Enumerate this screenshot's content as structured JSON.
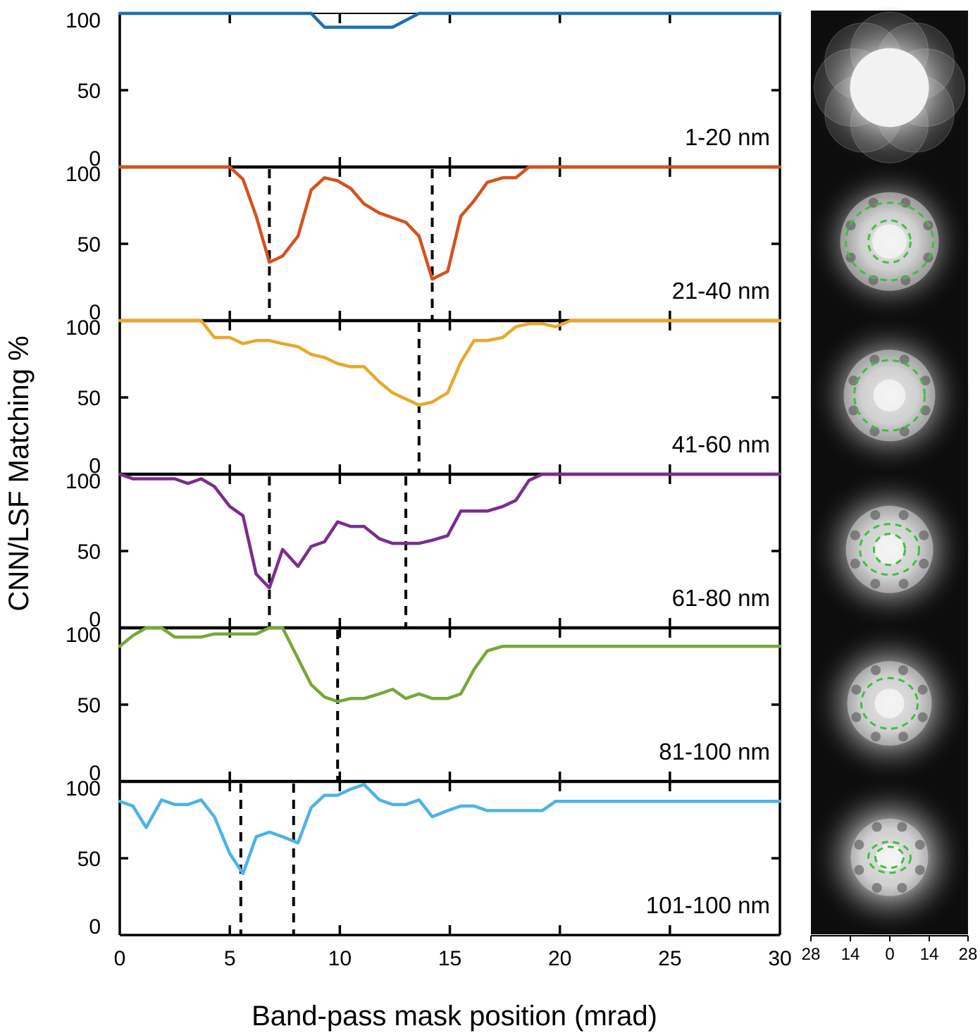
{
  "chart_data": {
    "type": "line",
    "xlabel": "Band-pass mask position (mrad)",
    "ylabel": "CNN/LSF Matching %",
    "xlim": [
      0,
      30
    ],
    "ylim": [
      0,
      100
    ],
    "x_ticks": [
      "0",
      "5",
      "10",
      "15",
      "20",
      "25",
      "30"
    ],
    "y_ticks": [
      "0",
      "50",
      "100"
    ],
    "image_axis_ticks": [
      "28",
      "14",
      "0",
      "14",
      "28"
    ],
    "panels": [
      {
        "range_label": "1-20 nm",
        "color": "#1f6fb2",
        "markers": [],
        "points": [
          [
            0,
            100
          ],
          [
            8.7,
            100
          ],
          [
            9.3,
            91
          ],
          [
            12.4,
            91
          ],
          [
            13.6,
            100
          ],
          [
            30,
            100
          ]
        ]
      },
      {
        "range_label": "21-40 nm",
        "color": "#d4521e",
        "markers": [
          6.8,
          14.2
        ],
        "points": [
          [
            0,
            100
          ],
          [
            5,
            100
          ],
          [
            5.6,
            92
          ],
          [
            6.2,
            68
          ],
          [
            6.8,
            38
          ],
          [
            7.4,
            42
          ],
          [
            8.1,
            55
          ],
          [
            8.7,
            85
          ],
          [
            9.3,
            93
          ],
          [
            9.9,
            91
          ],
          [
            10.5,
            86
          ],
          [
            11.1,
            76
          ],
          [
            11.8,
            70
          ],
          [
            12.4,
            67
          ],
          [
            13,
            64
          ],
          [
            13.6,
            55
          ],
          [
            14.2,
            27
          ],
          [
            14.9,
            32
          ],
          [
            15.5,
            68
          ],
          [
            16.1,
            78
          ],
          [
            16.7,
            90
          ],
          [
            17.4,
            93
          ],
          [
            18,
            93
          ],
          [
            18.6,
            100
          ],
          [
            30,
            100
          ]
        ]
      },
      {
        "range_label": "41-60 nm",
        "color": "#e8a82a",
        "markers": [
          13.6
        ],
        "points": [
          [
            0,
            100
          ],
          [
            3.7,
            100
          ],
          [
            4.3,
            89
          ],
          [
            5,
            89
          ],
          [
            5.6,
            85
          ],
          [
            6.2,
            87
          ],
          [
            6.8,
            87
          ],
          [
            7.4,
            85
          ],
          [
            8.1,
            83
          ],
          [
            8.7,
            78
          ],
          [
            9.3,
            76
          ],
          [
            9.9,
            72
          ],
          [
            10.5,
            70
          ],
          [
            11.1,
            70
          ],
          [
            11.8,
            60
          ],
          [
            12.4,
            53
          ],
          [
            13,
            49
          ],
          [
            13.6,
            45
          ],
          [
            14.2,
            47
          ],
          [
            14.9,
            53
          ],
          [
            15.5,
            73
          ],
          [
            16.1,
            87
          ],
          [
            16.7,
            87
          ],
          [
            17.4,
            89
          ],
          [
            18,
            96
          ],
          [
            18.6,
            98
          ],
          [
            19.2,
            98
          ],
          [
            19.8,
            96
          ],
          [
            20.5,
            100
          ],
          [
            30,
            100
          ]
        ]
      },
      {
        "range_label": "61-80 nm",
        "color": "#7b2d8e",
        "markers": [
          6.8,
          13
        ],
        "points": [
          [
            0,
            100
          ],
          [
            0.6,
            97
          ],
          [
            1.2,
            97
          ],
          [
            1.9,
            97
          ],
          [
            2.5,
            97
          ],
          [
            3.1,
            94
          ],
          [
            3.7,
            97
          ],
          [
            4.3,
            92
          ],
          [
            5,
            79
          ],
          [
            5.6,
            73
          ],
          [
            6.2,
            35
          ],
          [
            6.8,
            26
          ],
          [
            7.4,
            51
          ],
          [
            8.1,
            40
          ],
          [
            8.7,
            53
          ],
          [
            9.3,
            56
          ],
          [
            9.9,
            69
          ],
          [
            10.5,
            66
          ],
          [
            11.1,
            66
          ],
          [
            11.8,
            58
          ],
          [
            12.4,
            55
          ],
          [
            13,
            55
          ],
          [
            13.6,
            55
          ],
          [
            14.2,
            57
          ],
          [
            14.9,
            60
          ],
          [
            15.5,
            76
          ],
          [
            16.1,
            76
          ],
          [
            16.7,
            76
          ],
          [
            17.4,
            79
          ],
          [
            18,
            83
          ],
          [
            18.6,
            96
          ],
          [
            19.2,
            100
          ],
          [
            30,
            100
          ]
        ]
      },
      {
        "range_label": "81-100 nm",
        "color": "#78a73a",
        "markers": [
          9.9
        ],
        "points": [
          [
            0,
            88
          ],
          [
            0.6,
            95
          ],
          [
            1.2,
            100
          ],
          [
            1.9,
            100
          ],
          [
            2.5,
            94
          ],
          [
            3.1,
            94
          ],
          [
            3.7,
            94
          ],
          [
            4.3,
            96
          ],
          [
            5,
            96
          ],
          [
            5.6,
            96
          ],
          [
            6.2,
            96
          ],
          [
            6.8,
            100
          ],
          [
            7.4,
            100
          ],
          [
            8.1,
            80
          ],
          [
            8.7,
            63
          ],
          [
            9.3,
            55
          ],
          [
            9.9,
            52
          ],
          [
            10.5,
            54
          ],
          [
            11.1,
            54
          ],
          [
            11.8,
            57
          ],
          [
            12.4,
            60
          ],
          [
            13,
            54
          ],
          [
            13.6,
            57
          ],
          [
            14.2,
            54
          ],
          [
            14.9,
            54
          ],
          [
            15.5,
            57
          ],
          [
            16.1,
            73
          ],
          [
            16.7,
            85
          ],
          [
            17.4,
            88
          ],
          [
            30,
            88
          ]
        ]
      },
      {
        "range_label": "101-100 nm",
        "color": "#4db3e6",
        "markers": [
          5.5,
          7.9
        ],
        "points": [
          [
            0,
            87
          ],
          [
            0.6,
            84
          ],
          [
            1.2,
            70
          ],
          [
            1.9,
            88
          ],
          [
            2.5,
            85
          ],
          [
            3.1,
            85
          ],
          [
            3.7,
            88
          ],
          [
            4.3,
            77
          ],
          [
            5,
            53
          ],
          [
            5.6,
            40
          ],
          [
            6.2,
            64
          ],
          [
            6.8,
            67
          ],
          [
            7.4,
            64
          ],
          [
            8.1,
            60
          ],
          [
            8.7,
            83
          ],
          [
            9.3,
            91
          ],
          [
            9.9,
            91
          ],
          [
            10.5,
            95
          ],
          [
            11.1,
            98
          ],
          [
            11.8,
            88
          ],
          [
            12.4,
            85
          ],
          [
            13,
            85
          ],
          [
            13.6,
            88
          ],
          [
            14.2,
            77
          ],
          [
            14.9,
            81
          ],
          [
            15.5,
            84
          ],
          [
            16.1,
            84
          ],
          [
            16.7,
            81
          ],
          [
            17.4,
            81
          ],
          [
            18,
            81
          ],
          [
            18.6,
            81
          ],
          [
            19.2,
            81
          ],
          [
            19.8,
            87
          ],
          [
            30,
            87
          ]
        ]
      }
    ]
  }
}
